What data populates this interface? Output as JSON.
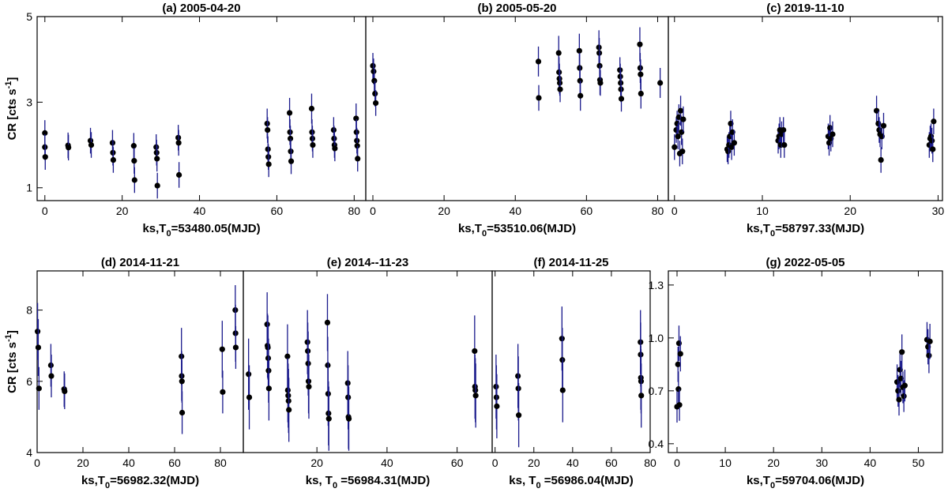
{
  "chart_data": [
    {
      "type": "scatter",
      "title": "(a) 2005-04-20",
      "xlabel": "ks,T",
      "xlabel_sub": "0",
      "xlabel_rest": "=53480.05(MJD)",
      "ylabel": "CR [cts s",
      "ylabel_sup": "-1",
      "ylabel_end": "]",
      "xlim": [
        -2,
        83
      ],
      "ylim": [
        0.7,
        5
      ],
      "xticks": [
        0,
        20,
        40,
        60,
        80
      ],
      "yticks": [
        1,
        3,
        5
      ],
      "points": [
        [
          0,
          2.28,
          0.3
        ],
        [
          0,
          1.95,
          0.3
        ],
        [
          0.1,
          1.72,
          0.3
        ],
        [
          6,
          1.99,
          0.3
        ],
        [
          6.1,
          1.94,
          0.3
        ],
        [
          11.8,
          2.1,
          0.3
        ],
        [
          12,
          2.0,
          0.3
        ],
        [
          17.5,
          2.05,
          0.3
        ],
        [
          17.6,
          1.82,
          0.3
        ],
        [
          17.7,
          1.65,
          0.3
        ],
        [
          23,
          1.98,
          0.3
        ],
        [
          23.1,
          1.63,
          0.3
        ],
        [
          23.2,
          1.18,
          0.3
        ],
        [
          28.8,
          1.95,
          0.3
        ],
        [
          28.9,
          1.82,
          0.3
        ],
        [
          29,
          1.68,
          0.3
        ],
        [
          29.1,
          1.05,
          0.3
        ],
        [
          34.5,
          2.17,
          0.3
        ],
        [
          34.6,
          2.05,
          0.3
        ],
        [
          34.7,
          1.3,
          0.3
        ],
        [
          57.5,
          2.5,
          0.35
        ],
        [
          57.6,
          2.35,
          0.3
        ],
        [
          57.7,
          1.9,
          0.3
        ],
        [
          57.8,
          1.72,
          0.3
        ],
        [
          57.9,
          1.55,
          0.3
        ],
        [
          63.3,
          2.75,
          0.35
        ],
        [
          63.4,
          2.3,
          0.3
        ],
        [
          63.5,
          2.15,
          0.3
        ],
        [
          63.6,
          1.85,
          0.3
        ],
        [
          63.7,
          1.62,
          0.3
        ],
        [
          69,
          2.85,
          0.35
        ],
        [
          69.1,
          2.3,
          0.3
        ],
        [
          69.2,
          2.15,
          0.3
        ],
        [
          69.3,
          2.0,
          0.3
        ],
        [
          74.7,
          2.35,
          0.3
        ],
        [
          74.8,
          2.15,
          0.3
        ],
        [
          74.9,
          2.0,
          0.3
        ],
        [
          75,
          1.92,
          0.3
        ],
        [
          80.5,
          2.62,
          0.35
        ],
        [
          80.6,
          2.3,
          0.3
        ],
        [
          80.7,
          2.1,
          0.3
        ],
        [
          80.8,
          1.98,
          0.3
        ],
        [
          80.9,
          1.68,
          0.3
        ]
      ]
    },
    {
      "type": "scatter",
      "title": "(b) 2005-05-20",
      "xlabel": "ks,T",
      "xlabel_sub": "0",
      "xlabel_rest": "=53510.06(MJD)",
      "xlim": [
        -2,
        83
      ],
      "ylim": [
        0.7,
        5
      ],
      "xticks": [
        0,
        20,
        40,
        60,
        80
      ],
      "yticks": [],
      "points": [
        [
          0,
          3.85,
          0.3
        ],
        [
          0.2,
          3.72,
          0.3
        ],
        [
          0.4,
          3.5,
          0.3
        ],
        [
          0.6,
          3.2,
          0.3
        ],
        [
          0.8,
          2.98,
          0.3
        ],
        [
          46.5,
          3.95,
          0.35
        ],
        [
          46.6,
          3.1,
          0.3
        ],
        [
          52.2,
          4.15,
          0.4
        ],
        [
          52.3,
          3.7,
          0.35
        ],
        [
          52.4,
          3.55,
          0.35
        ],
        [
          52.5,
          3.45,
          0.3
        ],
        [
          52.6,
          3.3,
          0.3
        ],
        [
          58,
          4.2,
          0.4
        ],
        [
          58.1,
          3.8,
          0.35
        ],
        [
          58.2,
          3.5,
          0.35
        ],
        [
          58.3,
          3.15,
          0.35
        ],
        [
          63.5,
          4.28,
          0.4
        ],
        [
          63.6,
          4.15,
          0.35
        ],
        [
          63.7,
          3.85,
          0.35
        ],
        [
          63.8,
          3.52,
          0.35
        ],
        [
          63.9,
          3.45,
          0.3
        ],
        [
          69.4,
          3.75,
          0.3
        ],
        [
          69.5,
          3.6,
          0.3
        ],
        [
          69.6,
          3.45,
          0.3
        ],
        [
          69.7,
          3.3,
          0.3
        ],
        [
          69.8,
          3.08,
          0.3
        ],
        [
          75,
          4.35,
          0.4
        ],
        [
          75.1,
          3.8,
          0.35
        ],
        [
          75.2,
          3.65,
          0.35
        ],
        [
          75.3,
          3.2,
          0.35
        ],
        [
          80.7,
          3.45,
          0.35
        ]
      ]
    },
    {
      "type": "scatter",
      "title": "(c) 2019-11-10",
      "xlabel": "ks,T",
      "xlabel_sub": "0",
      "xlabel_rest": "=58797.33(MJD)",
      "xlim": [
        -0.7,
        30.5
      ],
      "ylim": [
        0.7,
        5
      ],
      "xticks": [
        0,
        10,
        20,
        30
      ],
      "yticks": [],
      "points": [
        [
          0,
          1.95,
          0.3
        ],
        [
          0.2,
          2.35,
          0.3
        ],
        [
          0.3,
          2.5,
          0.3
        ],
        [
          0.4,
          2.2,
          0.3
        ],
        [
          0.5,
          2.65,
          0.3
        ],
        [
          0.6,
          1.8,
          0.3
        ],
        [
          0.7,
          2.8,
          0.35
        ],
        [
          0.8,
          2.3,
          0.3
        ],
        [
          0.9,
          1.85,
          0.3
        ],
        [
          1,
          2.6,
          0.3
        ],
        [
          6,
          1.9,
          0.3
        ],
        [
          6.1,
          1.85,
          0.3
        ],
        [
          6.2,
          2.0,
          0.3
        ],
        [
          6.3,
          2.2,
          0.3
        ],
        [
          6.4,
          2.5,
          0.3
        ],
        [
          6.5,
          1.95,
          0.3
        ],
        [
          6.6,
          2.3,
          0.3
        ],
        [
          6.8,
          2.05,
          0.3
        ],
        [
          11.8,
          2.1,
          0.3
        ],
        [
          11.9,
          2.2,
          0.3
        ],
        [
          12,
          2.35,
          0.3
        ],
        [
          12.1,
          2.0,
          0.3
        ],
        [
          12.2,
          2.25,
          0.3
        ],
        [
          12.4,
          2.35,
          0.3
        ],
        [
          12.5,
          2.0,
          0.3
        ],
        [
          17.5,
          2.2,
          0.3
        ],
        [
          17.6,
          2.05,
          0.3
        ],
        [
          17.7,
          2.4,
          0.3
        ],
        [
          17.8,
          2.15,
          0.3
        ],
        [
          18,
          2.25,
          0.3
        ],
        [
          23,
          2.8,
          0.35
        ],
        [
          23.2,
          2.5,
          0.3
        ],
        [
          23.3,
          2.35,
          0.3
        ],
        [
          23.4,
          2.25,
          0.3
        ],
        [
          23.5,
          1.65,
          0.3
        ],
        [
          23.6,
          2.2,
          0.3
        ],
        [
          23.8,
          2.45,
          0.3
        ],
        [
          29,
          2.0,
          0.3
        ],
        [
          29.1,
          2.15,
          0.3
        ],
        [
          29.2,
          2.2,
          0.3
        ],
        [
          29.3,
          2.1,
          0.3
        ],
        [
          29.4,
          1.9,
          0.3
        ],
        [
          29.5,
          2.55,
          0.3
        ]
      ]
    },
    {
      "type": "scatter",
      "title": "(d) 2014-11-21",
      "xlabel": "ks,T",
      "xlabel_sub": "0",
      "xlabel_rest": "=56982.32(MJD)",
      "ylabel": "CR [cts s",
      "ylabel_sup": "-1",
      "ylabel_end": "]",
      "xlim": [
        0,
        90
      ],
      "ylim": [
        4,
        9.1
      ],
      "xticks": [
        0,
        20,
        40,
        60,
        80
      ],
      "yticks": [
        4,
        6,
        8
      ],
      "points": [
        [
          0.2,
          7.4,
          0.8
        ],
        [
          0.5,
          6.95,
          0.8
        ],
        [
          0.8,
          5.8,
          0.6
        ],
        [
          6,
          6.45,
          0.6
        ],
        [
          6.2,
          6.15,
          0.6
        ],
        [
          11.8,
          5.78,
          0.5
        ],
        [
          12,
          5.72,
          0.5
        ],
        [
          63,
          6.7,
          0.8
        ],
        [
          63.1,
          6.15,
          0.7
        ],
        [
          63.2,
          6.0,
          0.6
        ],
        [
          63.3,
          5.12,
          0.6
        ],
        [
          80.8,
          6.9,
          0.8
        ],
        [
          81,
          5.7,
          0.6
        ],
        [
          86.5,
          8.0,
          0.7
        ],
        [
          86.6,
          7.35,
          0.8
        ],
        [
          86.7,
          6.95,
          0.6
        ]
      ]
    },
    {
      "type": "scatter",
      "title": "(e) 2014--11-23",
      "xlabel": "ks, T",
      "xlabel_sub": "0",
      "xlabel_rest": " =56984.31(MJD)",
      "xlim": [
        -1,
        70
      ],
      "ylim": [
        4,
        9.1
      ],
      "xticks": [
        20,
        40,
        60
      ],
      "yticks": [],
      "points": [
        [
          0.5,
          6.2,
          1.0
        ],
        [
          0.7,
          5.55,
          0.9
        ],
        [
          5.8,
          7.6,
          0.9
        ],
        [
          5.9,
          7.0,
          0.9
        ],
        [
          6,
          6.95,
          0.9
        ],
        [
          6.1,
          6.65,
          0.9
        ],
        [
          6.2,
          6.3,
          0.9
        ],
        [
          6.3,
          5.8,
          0.9
        ],
        [
          11.6,
          6.7,
          0.9
        ],
        [
          11.7,
          5.75,
          0.9
        ],
        [
          11.8,
          5.6,
          0.9
        ],
        [
          11.9,
          5.45,
          0.9
        ],
        [
          12,
          5.2,
          0.9
        ],
        [
          17.3,
          7.1,
          0.9
        ],
        [
          17.4,
          6.85,
          0.8
        ],
        [
          17.5,
          6.5,
          0.9
        ],
        [
          17.6,
          6.0,
          0.9
        ],
        [
          17.7,
          5.85,
          0.9
        ],
        [
          23,
          7.65,
          0.8
        ],
        [
          23.1,
          6.45,
          0.8
        ],
        [
          23.2,
          5.65,
          0.9
        ],
        [
          23.3,
          5.1,
          0.9
        ],
        [
          23.4,
          4.95,
          0.9
        ],
        [
          28.8,
          5.95,
          0.9
        ],
        [
          28.9,
          5.55,
          0.9
        ],
        [
          29,
          5.0,
          0.9
        ],
        [
          29.1,
          4.95,
          0.9
        ],
        [
          65,
          6.85,
          1.0
        ],
        [
          65.1,
          5.85,
          0.9
        ],
        [
          65.2,
          5.75,
          0.9
        ],
        [
          65.3,
          5.6,
          0.9
        ]
      ]
    },
    {
      "type": "scatter",
      "title": "(f) 2014-11-25",
      "xlabel": "ks, T",
      "xlabel_sub": "0",
      "xlabel_rest": " =56986.04(MJD)",
      "xlim": [
        -1.5,
        80
      ],
      "ylim": [
        4,
        9.1
      ],
      "xticks": [
        0,
        20,
        40,
        60,
        80
      ],
      "yticks": [],
      "points": [
        [
          0.5,
          5.85,
          0.9
        ],
        [
          0.7,
          5.55,
          0.9
        ],
        [
          0.9,
          5.3,
          0.9
        ],
        [
          11.8,
          6.15,
          0.9
        ],
        [
          12,
          5.8,
          0.9
        ],
        [
          12.2,
          5.05,
          0.9
        ],
        [
          34.5,
          7.2,
          0.9
        ],
        [
          34.7,
          6.6,
          0.9
        ],
        [
          34.9,
          5.75,
          0.9
        ],
        [
          75,
          7.1,
          0.9
        ],
        [
          75.1,
          6.75,
          0.9
        ],
        [
          75.2,
          6.1,
          0.9
        ],
        [
          75.3,
          6.0,
          0.9
        ],
        [
          75.4,
          5.6,
          0.9
        ]
      ]
    },
    {
      "type": "scatter",
      "title": "(g) 2022-05-05",
      "xlabel": "ks,T",
      "xlabel_sub": "0",
      "xlabel_rest": "=59704.06(MJD)",
      "xlim": [
        -1.8,
        55
      ],
      "ylim": [
        0.35,
        1.38
      ],
      "xticks": [
        0,
        10,
        20,
        30,
        40,
        50
      ],
      "yticks": [
        0.4,
        0.7,
        1.0,
        1.3
      ],
      "ytick_labels": [
        "0.4",
        "0.7",
        "1.0",
        "1.3"
      ],
      "points": [
        [
          0,
          0.61,
          0.09
        ],
        [
          0.2,
          0.85,
          0.1
        ],
        [
          0.3,
          0.71,
          0.1
        ],
        [
          0.4,
          0.97,
          0.1
        ],
        [
          0.5,
          0.62,
          0.09
        ],
        [
          0.7,
          0.91,
          0.1
        ],
        [
          45.6,
          0.75,
          0.1
        ],
        [
          45.8,
          0.7,
          0.09
        ],
        [
          46,
          0.65,
          0.09
        ],
        [
          46.2,
          0.82,
          0.1
        ],
        [
          46.4,
          0.77,
          0.1
        ],
        [
          46.6,
          0.92,
          0.1
        ],
        [
          46.8,
          0.72,
          0.09
        ],
        [
          47,
          0.67,
          0.09
        ],
        [
          47.2,
          0.73,
          0.09
        ],
        [
          51.8,
          0.99,
          0.1
        ],
        [
          52,
          0.95,
          0.1
        ],
        [
          52.2,
          0.9,
          0.1
        ],
        [
          52.4,
          0.98,
          0.1
        ]
      ]
    }
  ]
}
